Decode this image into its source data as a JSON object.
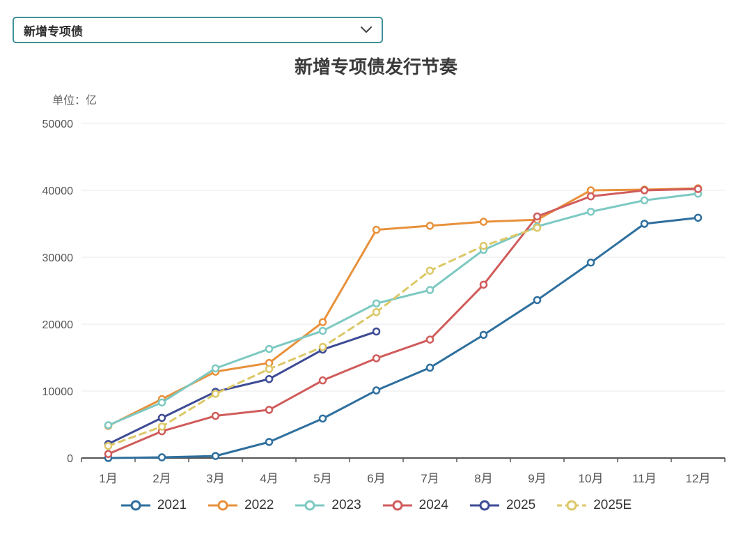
{
  "dropdown": {
    "value": "新增专项债",
    "icon": "chevron-down"
  },
  "title": "新增专项债发行节奏",
  "unit_label": "单位：亿",
  "chart_data": {
    "type": "line",
    "title": "新增专项债发行节奏",
    "ylabel": "单位：亿",
    "xlabel": "",
    "categories": [
      "1月",
      "2月",
      "3月",
      "4月",
      "5月",
      "6月",
      "7月",
      "8月",
      "9月",
      "10月",
      "11月",
      "12月"
    ],
    "series": [
      {
        "name": "2021",
        "color": "#2e6f9e",
        "line_style": "solid",
        "values": [
          0,
          100,
          300,
          2400,
          5900,
          10100,
          13500,
          18400,
          23600,
          29200,
          35000,
          35900
        ]
      },
      {
        "name": "2022",
        "color": "#e8913c",
        "line_style": "solid",
        "values": [
          4800,
          8800,
          12900,
          14200,
          20300,
          34100,
          34700,
          35300,
          35600,
          40000,
          40100,
          40300
        ]
      },
      {
        "name": "2023",
        "color": "#7dc9c2",
        "line_style": "solid",
        "values": [
          4900,
          8300,
          13400,
          16300,
          19000,
          23100,
          25100,
          31100,
          34600,
          36800,
          38500,
          39500
        ]
      },
      {
        "name": "2024",
        "color": "#d05c5b",
        "line_style": "solid",
        "values": [
          600,
          4000,
          6300,
          7200,
          11600,
          14900,
          17700,
          25900,
          36100,
          39100,
          40000,
          40200
        ]
      },
      {
        "name": "2025",
        "color": "#3e4b95",
        "line_style": "solid",
        "values": [
          2100,
          6000,
          9900,
          11800,
          16200,
          18900
        ]
      },
      {
        "name": "2025E",
        "color": "#dcc867",
        "line_style": "dashed",
        "values": [
          1800,
          4700,
          9600,
          13300,
          16600,
          21800,
          28000,
          31700,
          34400
        ]
      }
    ],
    "ylim": [
      0,
      50000
    ],
    "ytick_step": 10000,
    "grid": true,
    "legend_position": "bottom",
    "axis_color": "#555555",
    "gridline_color": "#e8e8e8"
  }
}
